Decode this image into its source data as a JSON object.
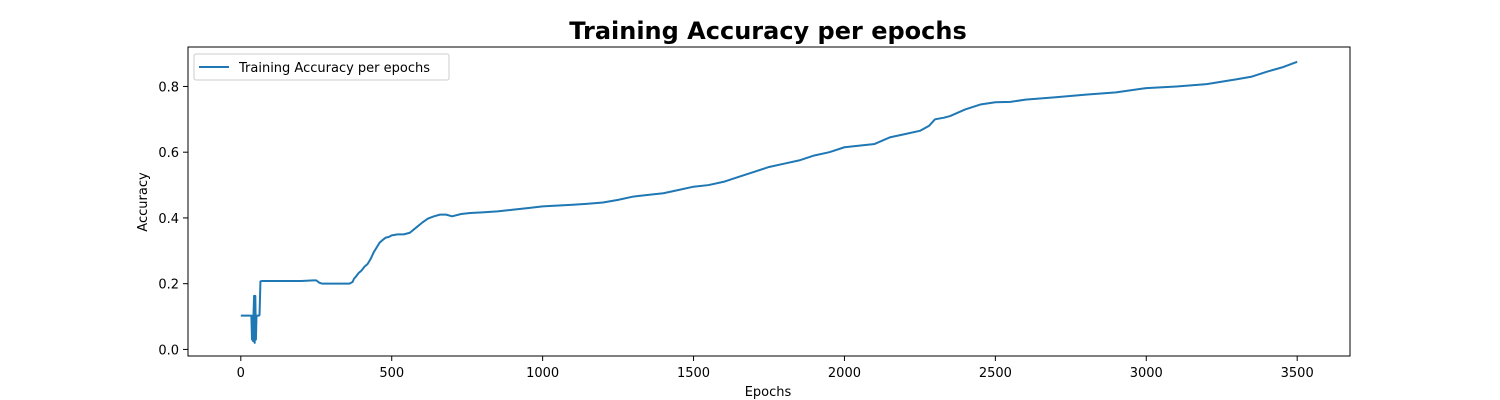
{
  "chart_data": {
    "type": "line",
    "title": "Training Accuracy per epochs",
    "xlabel": "Epochs",
    "ylabel": "Accuracy",
    "xlim": [
      -175,
      3675
    ],
    "ylim": [
      -0.02,
      0.92
    ],
    "xticks": [
      0,
      500,
      1000,
      1500,
      2000,
      2500,
      3000,
      3500
    ],
    "xtick_labels": [
      "0",
      "500",
      "1000",
      "1500",
      "2000",
      "2500",
      "3000",
      "3500"
    ],
    "yticks": [
      0.0,
      0.2,
      0.4,
      0.6,
      0.8
    ],
    "ytick_labels": [
      "0.0",
      "0.2",
      "0.4",
      "0.6",
      "0.8"
    ],
    "grid": false,
    "legend_position": "top-left",
    "colors": {
      "series": "#1f77b4"
    },
    "series": [
      {
        "name": "Training Accuracy per epochs",
        "x": [
          0,
          35,
          37,
          39,
          41,
          42,
          44,
          46,
          48,
          50,
          52,
          55,
          58,
          60,
          62,
          65,
          70,
          100,
          150,
          200,
          240,
          250,
          260,
          270,
          300,
          340,
          360,
          370,
          375,
          380,
          390,
          400,
          410,
          420,
          430,
          440,
          450,
          460,
          470,
          480,
          490,
          500,
          520,
          540,
          560,
          580,
          600,
          620,
          640,
          660,
          680,
          700,
          730,
          760,
          800,
          850,
          900,
          950,
          1000,
          1100,
          1150,
          1200,
          1250,
          1300,
          1350,
          1400,
          1450,
          1500,
          1550,
          1600,
          1650,
          1700,
          1750,
          1800,
          1850,
          1900,
          1950,
          2000,
          2050,
          2100,
          2150,
          2200,
          2250,
          2280,
          2300,
          2330,
          2350,
          2400,
          2450,
          2500,
          2550,
          2600,
          2700,
          2800,
          2900,
          3000,
          3100,
          3200,
          3300,
          3350,
          3400,
          3450,
          3480,
          3500
        ],
        "y": [
          0.103,
          0.103,
          0.03,
          0.103,
          0.025,
          0.103,
          0.163,
          0.02,
          0.163,
          0.03,
          0.103,
          0.103,
          0.103,
          0.103,
          0.105,
          0.207,
          0.208,
          0.208,
          0.208,
          0.208,
          0.21,
          0.21,
          0.203,
          0.2,
          0.2,
          0.2,
          0.2,
          0.205,
          0.215,
          0.22,
          0.232,
          0.24,
          0.252,
          0.26,
          0.275,
          0.295,
          0.31,
          0.325,
          0.333,
          0.34,
          0.342,
          0.347,
          0.35,
          0.35,
          0.355,
          0.37,
          0.385,
          0.398,
          0.405,
          0.41,
          0.41,
          0.405,
          0.412,
          0.415,
          0.417,
          0.42,
          0.425,
          0.43,
          0.435,
          0.44,
          0.443,
          0.447,
          0.455,
          0.465,
          0.47,
          0.475,
          0.485,
          0.495,
          0.5,
          0.51,
          0.525,
          0.54,
          0.555,
          0.565,
          0.575,
          0.59,
          0.6,
          0.615,
          0.62,
          0.625,
          0.645,
          0.655,
          0.665,
          0.68,
          0.7,
          0.705,
          0.71,
          0.73,
          0.745,
          0.752,
          0.753,
          0.76,
          0.767,
          0.775,
          0.782,
          0.795,
          0.8,
          0.807,
          0.822,
          0.83,
          0.845,
          0.858,
          0.868,
          0.875
        ]
      }
    ]
  }
}
